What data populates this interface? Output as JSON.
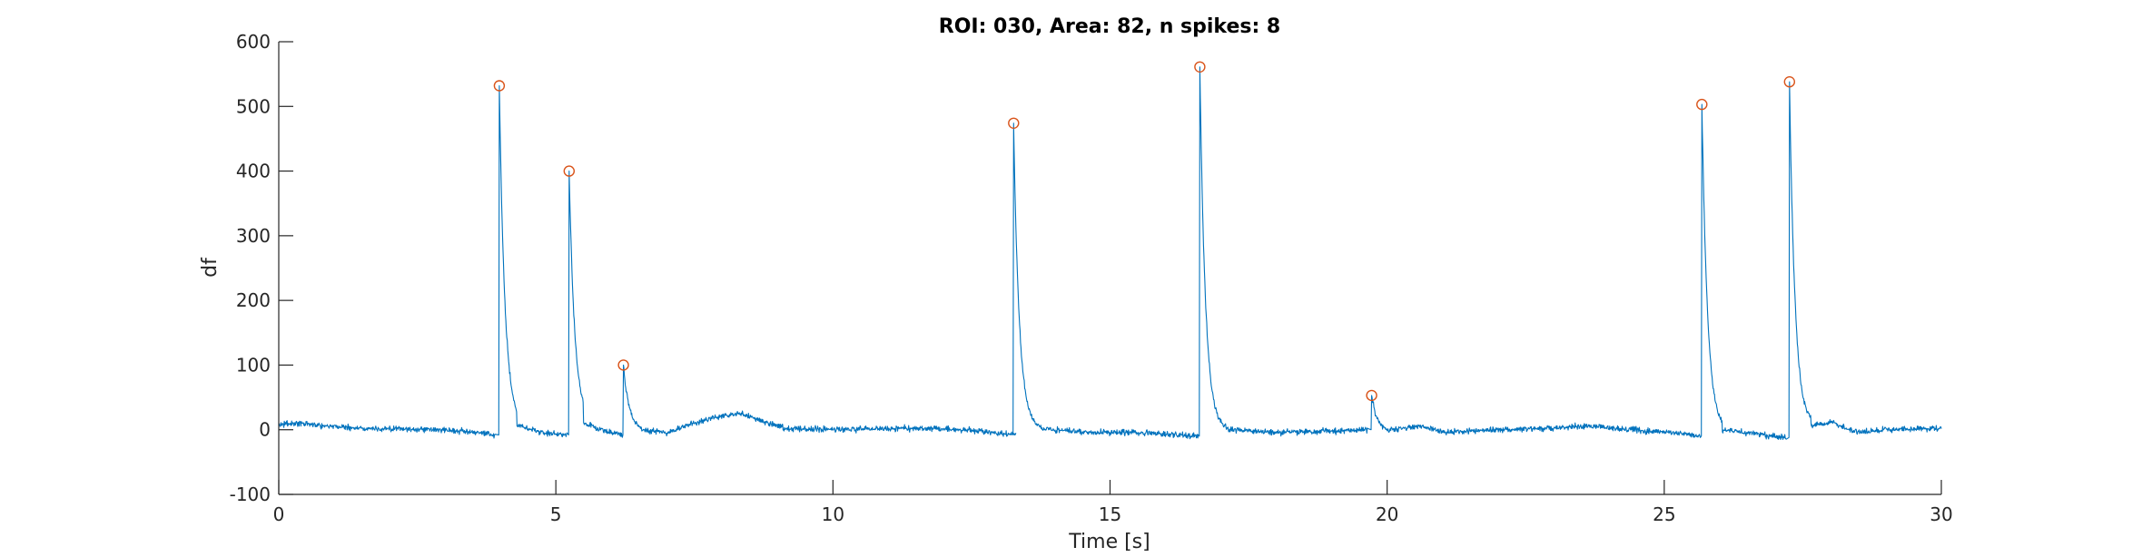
{
  "chart_data": {
    "type": "line",
    "title": "ROI: 030, Area: 82, n spikes: 8",
    "xlabel": "Time [s]",
    "ylabel": "df",
    "xlim": [
      0,
      30
    ],
    "ylim": [
      -100,
      600
    ],
    "xticks": [
      0,
      5,
      10,
      15,
      20,
      25,
      30
    ],
    "yticks": [
      -100,
      0,
      100,
      200,
      300,
      400,
      500,
      600
    ],
    "xtick_labels": [
      "0",
      "5",
      "10",
      "15",
      "20",
      "25",
      "30"
    ],
    "ytick_labels": [
      "-100",
      "0",
      "100",
      "200",
      "300",
      "400",
      "500",
      "600"
    ],
    "grid": false,
    "series": [
      {
        "color": "#0072BD",
        "baseline_segments": [
          {
            "x": [
              0.0,
              0.3,
              1.5,
              3.0,
              3.9
            ],
            "y": [
              8,
              10,
              2,
              0,
              -8
            ]
          },
          {
            "x": [
              4.3,
              4.7,
              5.2
            ],
            "y": [
              8,
              -4,
              -8
            ]
          },
          {
            "x": [
              5.5,
              5.8,
              6.2
            ],
            "y": [
              12,
              0,
              -8
            ]
          },
          {
            "x": [
              6.55,
              7.0,
              7.5,
              8.0,
              8.3,
              8.7,
              9.2,
              10.0,
              11.0,
              12.0,
              12.8,
              13.3
            ],
            "y": [
              0,
              -4,
              10,
              22,
              26,
              14,
              2,
              0,
              2,
              2,
              -4,
              -8
            ]
          },
          {
            "x": [
              13.75,
              14.5,
              15.5,
              16.6
            ],
            "y": [
              2,
              -4,
              -4,
              -10
            ]
          },
          {
            "x": [
              17.1,
              18.0,
              19.0,
              19.65
            ],
            "y": [
              0,
              -4,
              -2,
              0
            ]
          },
          {
            "x": [
              20.0,
              20.6,
              21.0,
              22.0,
              23.0,
              23.5,
              24.5,
              25.5,
              25.65
            ],
            "y": [
              -2,
              6,
              -4,
              0,
              2,
              6,
              0,
              -8,
              -10
            ]
          },
          {
            "x": [
              26.05,
              26.6,
              27.2
            ],
            "y": [
              0,
              -6,
              -12
            ]
          },
          {
            "x": [
              27.65,
              28.0,
              28.5,
              29.0,
              30.0
            ],
            "y": [
              6,
              12,
              -4,
              0,
              2
            ]
          }
        ],
        "spike_decay_tau": 0.1,
        "noise_amplitude": 4.5
      }
    ],
    "spikes": {
      "marker": "circle",
      "color": "#D95319",
      "x": [
        3.98,
        5.24,
        6.22,
        13.26,
        16.62,
        19.72,
        25.68,
        27.26
      ],
      "y": [
        532,
        400,
        100,
        474,
        561,
        53,
        503,
        538
      ]
    }
  }
}
